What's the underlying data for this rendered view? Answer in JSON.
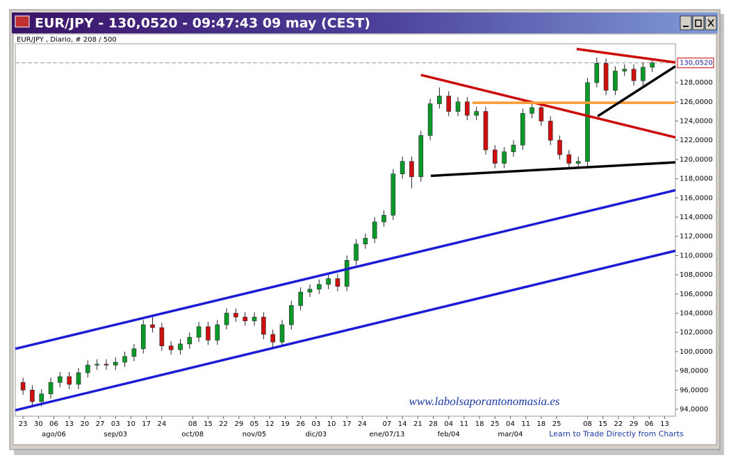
{
  "chart_data": {
    "type": "candlestick",
    "title": "EUR/JPY - 130,0520 - 09:47:43  09 may (CEST)",
    "subtitle": "EUR/JPY , Diario, # 208 / 500",
    "watermark": "www.labolsaporantonomasia.es",
    "footer": "Learn to Trade Directly from Charts",
    "up_color": "#0a9a2a",
    "down_color": "#d01010",
    "x": [
      0,
      3,
      6,
      9,
      12,
      15,
      18,
      21,
      24,
      27,
      30,
      33,
      36,
      39,
      42,
      45,
      48,
      51,
      54,
      57,
      60,
      63,
      66,
      69,
      72,
      75,
      78,
      81,
      84,
      87,
      90,
      93,
      96,
      99,
      102,
      105,
      108,
      111,
      114,
      117,
      120,
      123,
      126,
      129,
      132,
      135,
      138,
      141,
      144,
      147,
      150,
      153,
      156,
      159,
      162,
      165,
      168,
      171,
      174,
      177,
      180,
      183,
      186,
      189,
      192,
      195,
      198,
      201,
      204
    ],
    "open": [
      96.8,
      96.0,
      94.8,
      95.6,
      96.8,
      97.4,
      96.6,
      97.8,
      98.6,
      98.7,
      98.6,
      98.9,
      99.5,
      100.3,
      102.8,
      102.5,
      100.6,
      100.2,
      100.8,
      101.5,
      102.6,
      101.2,
      102.8,
      104.0,
      103.6,
      103.2,
      103.6,
      101.8,
      101.0,
      102.8,
      104.8,
      106.2,
      106.5,
      107.0,
      107.6,
      106.8,
      109.5,
      111.2,
      111.8,
      113.5,
      114.2,
      118.5,
      119.8,
      118.2,
      122.5,
      125.8,
      126.6,
      125.0,
      126.0,
      124.6,
      125.0,
      121.0,
      119.6,
      120.8,
      121.5,
      124.8,
      125.4,
      124.0,
      122.0,
      120.5,
      119.6,
      119.8,
      128.0,
      130.0,
      127.2,
      129.2,
      129.4,
      128.2,
      129.6
    ],
    "high": [
      97.3,
      96.5,
      96.1,
      97.3,
      97.9,
      97.9,
      98.3,
      99.1,
      99.2,
      99.2,
      99.4,
      100.0,
      100.8,
      103.3,
      103.8,
      103.0,
      101.1,
      101.3,
      102.0,
      103.1,
      103.1,
      103.3,
      104.5,
      104.5,
      104.1,
      104.1,
      104.1,
      102.3,
      103.3,
      105.3,
      106.7,
      107.0,
      107.5,
      108.1,
      108.1,
      110.0,
      111.7,
      112.3,
      114.0,
      114.7,
      119.0,
      120.3,
      120.3,
      123.0,
      126.3,
      127.5,
      127.1,
      126.5,
      126.5,
      125.5,
      125.5,
      121.5,
      121.3,
      122.0,
      125.3,
      125.9,
      125.9,
      124.5,
      122.5,
      121.0,
      120.3,
      128.5,
      130.6,
      130.5,
      129.7,
      129.9,
      129.9,
      130.1,
      130.3
    ],
    "low": [
      95.5,
      94.3,
      94.3,
      95.1,
      96.3,
      96.1,
      96.1,
      97.3,
      98.1,
      98.1,
      98.1,
      98.4,
      99.0,
      99.8,
      102.0,
      100.1,
      99.7,
      99.7,
      100.3,
      101.0,
      100.7,
      100.7,
      102.3,
      103.1,
      102.7,
      102.7,
      101.3,
      100.5,
      100.5,
      102.3,
      104.3,
      105.7,
      106.0,
      106.5,
      106.3,
      106.3,
      109.0,
      110.7,
      111.3,
      113.0,
      113.7,
      118.0,
      117.0,
      117.7,
      122.0,
      125.3,
      124.5,
      124.5,
      124.1,
      124.1,
      120.5,
      119.1,
      119.1,
      120.3,
      121.0,
      124.3,
      123.5,
      121.5,
      120.0,
      119.1,
      119.1,
      119.3,
      127.5,
      126.7,
      126.7,
      128.7,
      127.7,
      127.7,
      129.1
    ],
    "close": [
      96.0,
      94.8,
      95.6,
      96.8,
      97.4,
      96.6,
      97.8,
      98.6,
      98.7,
      98.6,
      98.9,
      99.5,
      100.3,
      102.8,
      102.5,
      100.6,
      100.2,
      100.8,
      101.5,
      102.6,
      101.2,
      102.8,
      104.0,
      103.6,
      103.2,
      103.6,
      101.8,
      101.0,
      102.8,
      104.8,
      106.2,
      106.5,
      107.0,
      107.6,
      106.8,
      109.5,
      111.2,
      111.8,
      113.5,
      114.2,
      118.5,
      119.8,
      118.2,
      122.5,
      125.8,
      126.6,
      125.0,
      126.0,
      124.6,
      125.0,
      121.0,
      119.6,
      120.8,
      121.5,
      124.8,
      125.4,
      124.0,
      122.0,
      120.5,
      119.6,
      119.8,
      128.0,
      130.0,
      127.2,
      129.2,
      129.4,
      128.2,
      129.6,
      130.05
    ],
    "xlim": [
      -2.5,
      211.5
    ],
    "ylim": [
      93.28,
      132.05
    ],
    "yticks": [
      {
        "value": 94,
        "label": "94,0000"
      },
      {
        "value": 96,
        "label": "96,0000"
      },
      {
        "value": 98,
        "label": "98,0000"
      },
      {
        "value": 100,
        "label": "100,0000"
      },
      {
        "value": 102,
        "label": "102,0000"
      },
      {
        "value": 104,
        "label": "104,0000"
      },
      {
        "value": 106,
        "label": "106,0000"
      },
      {
        "value": 108,
        "label": "108,0000"
      },
      {
        "value": 110,
        "label": "110,0000"
      },
      {
        "value": 112,
        "label": "112,0000"
      },
      {
        "value": 114,
        "label": "114,0000"
      },
      {
        "value": 116,
        "label": "116,0000"
      },
      {
        "value": 118,
        "label": "118,0000"
      },
      {
        "value": 120,
        "label": "120,0000"
      },
      {
        "value": 122,
        "label": "122,0000"
      },
      {
        "value": 124,
        "label": "124,0000"
      },
      {
        "value": 126,
        "label": "126,0000"
      },
      {
        "value": 128,
        "label": "128,0000"
      }
    ],
    "xticks": [
      {
        "value": 0,
        "label": "23"
      },
      {
        "value": 5,
        "label": "30"
      },
      {
        "value": 10,
        "label": "06"
      },
      {
        "value": 15,
        "label": "13"
      },
      {
        "value": 20,
        "label": "20"
      },
      {
        "value": 25,
        "label": "27"
      },
      {
        "value": 30,
        "label": "03"
      },
      {
        "value": 35,
        "label": "10"
      },
      {
        "value": 40,
        "label": "17"
      },
      {
        "value": 45,
        "label": "24"
      },
      {
        "value": 55,
        "label": "08"
      },
      {
        "value": 60,
        "label": "15"
      },
      {
        "value": 65,
        "label": "22"
      },
      {
        "value": 70,
        "label": "29"
      },
      {
        "value": 75,
        "label": "05"
      },
      {
        "value": 80,
        "label": "12"
      },
      {
        "value": 85,
        "label": "19"
      },
      {
        "value": 90,
        "label": "26"
      },
      {
        "value": 95,
        "label": "03"
      },
      {
        "value": 100,
        "label": "10"
      },
      {
        "value": 105,
        "label": "17"
      },
      {
        "value": 110,
        "label": "24"
      },
      {
        "value": 118,
        "label": "07"
      },
      {
        "value": 123,
        "label": "14"
      },
      {
        "value": 128,
        "label": "21"
      },
      {
        "value": 133,
        "label": "28"
      },
      {
        "value": 138,
        "label": "04"
      },
      {
        "value": 143,
        "label": "11"
      },
      {
        "value": 148,
        "label": "18"
      },
      {
        "value": 153,
        "label": "25"
      },
      {
        "value": 158,
        "label": "04"
      },
      {
        "value": 163,
        "label": "11"
      },
      {
        "value": 168,
        "label": "18"
      },
      {
        "value": 173,
        "label": "25"
      },
      {
        "value": 183,
        "label": "08"
      },
      {
        "value": 188,
        "label": "15"
      },
      {
        "value": 193,
        "label": "22"
      },
      {
        "value": 198,
        "label": "29"
      },
      {
        "value": 203,
        "label": "06"
      },
      {
        "value": 208,
        "label": "13"
      }
    ],
    "month_ticks": [
      {
        "value": 10,
        "label": "ago/06"
      },
      {
        "value": 30,
        "label": "sep/03"
      },
      {
        "value": 55,
        "label": "oct/08"
      },
      {
        "value": 75,
        "label": "nov/05"
      },
      {
        "value": 95,
        "label": "dic/03"
      },
      {
        "value": 118,
        "label": "ene/07/13"
      },
      {
        "value": 138,
        "label": "feb/04"
      },
      {
        "value": 158,
        "label": "mar/04"
      }
    ],
    "last_value": 130.052,
    "last_label": "130,0520",
    "lines": [
      {
        "color": "#1c1cd6",
        "x": [
          -2.5,
          211.5
        ],
        "y": [
          100.3,
          116.8
        ]
      },
      {
        "color": "#1c1cd6",
        "x": [
          -2.5,
          211.5
        ],
        "y": [
          93.9,
          110.5
        ]
      },
      {
        "color": "#cc0a0a",
        "x": [
          129,
          211.5
        ],
        "y": [
          128.8,
          122.3
        ]
      },
      {
        "color": "#cc0a0a",
        "x": [
          179.5,
          211.5
        ],
        "y": [
          131.5,
          130.1
        ]
      },
      {
        "color": "#ff9933",
        "x": [
          145.7,
          211.5
        ],
        "y": [
          125.9,
          125.9
        ]
      },
      {
        "color": "#000000",
        "x": [
          132.2,
          211.5
        ],
        "y": [
          118.3,
          119.7
        ]
      },
      {
        "color": "#000000",
        "x": [
          186.3,
          211.5
        ],
        "y": [
          124.5,
          129.7
        ]
      }
    ]
  }
}
